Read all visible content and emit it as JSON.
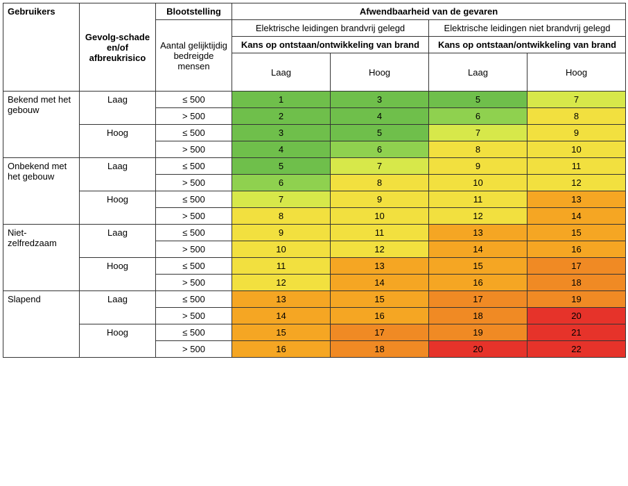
{
  "headers": {
    "gebruikers": "Gebruikers",
    "gevolg": "Gevolg-schade en/of afbreukrisico",
    "blootstelling": "Blootstelling",
    "afwendbaarheid": "Afwendbaarheid van de gevaren",
    "brandvrij": "Elektrische leidingen brandvrij gelegd",
    "niet_brandvrij": "Elektrische leidingen niet brandvrij gelegd",
    "aantal": "Aantal gelijktijdig bedreigde mensen",
    "kans": "Kans op ontstaan/ontwikkeling van brand",
    "laag": "Laag",
    "hoog": "Hoog"
  },
  "userGroups": [
    {
      "label": "Bekend met het gebouw"
    },
    {
      "label": "Onbekend met het gebouw"
    },
    {
      "label": "Niet-zelfredzaam"
    },
    {
      "label": "Slapend"
    }
  ],
  "gevolgLevels": [
    "Laag",
    "Hoog"
  ],
  "exposures": [
    "≤ 500",
    "> 500"
  ],
  "colors": {
    "green": "#6fbf4b",
    "lightgreen": "#8fd14f",
    "yellowgreen": "#d7e84a",
    "yellow": "#f2e03f",
    "orange": "#f5a623",
    "darkorange": "#f08a24",
    "red": "#e6332a"
  },
  "rows": [
    {
      "v": [
        1,
        3,
        5,
        7
      ],
      "c": [
        "green",
        "green",
        "green",
        "yellowgreen"
      ]
    },
    {
      "v": [
        2,
        4,
        6,
        8
      ],
      "c": [
        "green",
        "green",
        "lightgreen",
        "yellow"
      ]
    },
    {
      "v": [
        3,
        5,
        7,
        9
      ],
      "c": [
        "green",
        "green",
        "yellowgreen",
        "yellow"
      ]
    },
    {
      "v": [
        4,
        6,
        8,
        10
      ],
      "c": [
        "green",
        "lightgreen",
        "yellow",
        "yellow"
      ]
    },
    {
      "v": [
        5,
        7,
        9,
        11
      ],
      "c": [
        "green",
        "yellowgreen",
        "yellow",
        "yellow"
      ]
    },
    {
      "v": [
        6,
        8,
        10,
        12
      ],
      "c": [
        "lightgreen",
        "yellow",
        "yellow",
        "yellow"
      ]
    },
    {
      "v": [
        7,
        9,
        11,
        13
      ],
      "c": [
        "yellowgreen",
        "yellow",
        "yellow",
        "orange"
      ]
    },
    {
      "v": [
        8,
        10,
        12,
        14
      ],
      "c": [
        "yellow",
        "yellow",
        "yellow",
        "orange"
      ]
    },
    {
      "v": [
        9,
        11,
        13,
        15
      ],
      "c": [
        "yellow",
        "yellow",
        "orange",
        "orange"
      ]
    },
    {
      "v": [
        10,
        12,
        14,
        16
      ],
      "c": [
        "yellow",
        "yellow",
        "orange",
        "orange"
      ]
    },
    {
      "v": [
        11,
        13,
        15,
        17
      ],
      "c": [
        "yellow",
        "orange",
        "orange",
        "darkorange"
      ]
    },
    {
      "v": [
        12,
        14,
        16,
        18
      ],
      "c": [
        "yellow",
        "orange",
        "orange",
        "darkorange"
      ]
    },
    {
      "v": [
        13,
        15,
        17,
        19
      ],
      "c": [
        "orange",
        "orange",
        "darkorange",
        "darkorange"
      ]
    },
    {
      "v": [
        14,
        16,
        18,
        20
      ],
      "c": [
        "orange",
        "orange",
        "darkorange",
        "red"
      ]
    },
    {
      "v": [
        15,
        17,
        19,
        21
      ],
      "c": [
        "orange",
        "darkorange",
        "darkorange",
        "red"
      ]
    },
    {
      "v": [
        16,
        18,
        20,
        22
      ],
      "c": [
        "orange",
        "darkorange",
        "red",
        "red"
      ]
    }
  ],
  "columnWidths": {
    "users": 110,
    "gevolg": 110,
    "exposure": 110,
    "value": 125
  }
}
